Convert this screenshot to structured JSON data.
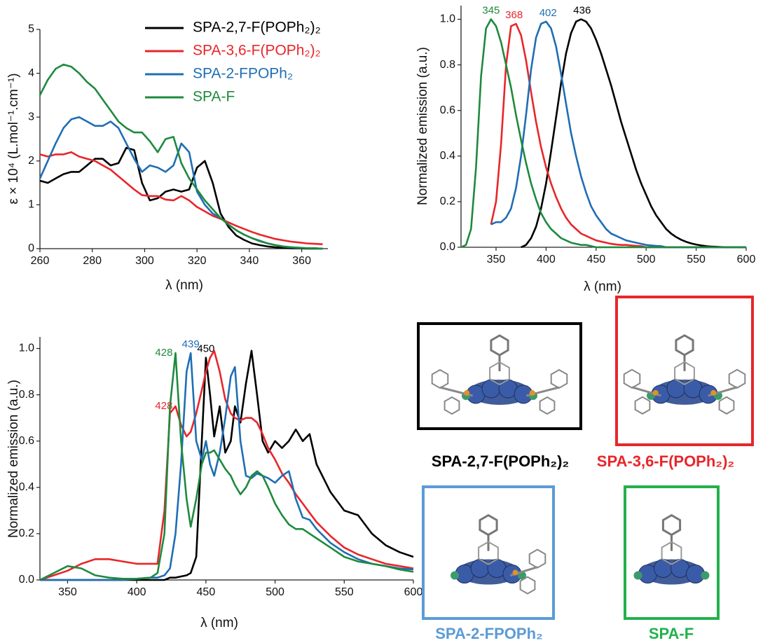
{
  "chart_data": [
    {
      "type": "line",
      "x_label": "λ (nm)",
      "y_label": "ε × 10⁴ (L.mol⁻¹.cm⁻¹)",
      "xlim": [
        260,
        370
      ],
      "xticks": [
        260,
        280,
        300,
        320,
        340,
        360
      ],
      "ylim": [
        0,
        5
      ],
      "yticks": [
        0,
        1,
        2,
        3,
        4,
        5
      ],
      "legend": "upper right",
      "x": [
        260,
        263,
        266,
        269,
        272,
        275,
        278,
        281,
        284,
        287,
        290,
        293,
        296,
        299,
        302,
        305,
        308,
        311,
        314,
        317,
        320,
        323,
        326,
        329,
        332,
        335,
        338,
        341,
        344,
        347,
        350,
        353,
        356,
        359,
        362,
        365,
        368
      ],
      "series": [
        {
          "name": "SPA-2,7-F(POPh₂)₂",
          "color": "#000000",
          "values": [
            1.55,
            1.5,
            1.6,
            1.7,
            1.75,
            1.75,
            1.9,
            2.05,
            2.05,
            1.9,
            1.95,
            2.3,
            2.25,
            1.5,
            1.1,
            1.15,
            1.3,
            1.35,
            1.3,
            1.35,
            1.85,
            2.0,
            1.5,
            0.8,
            0.5,
            0.3,
            0.2,
            0.12,
            0.08,
            0.05,
            0.03,
            0.02,
            0.01,
            0.01,
            0,
            0,
            0
          ]
        },
        {
          "name": "SPA-3,6-F(POPh₂)₂",
          "color": "#e8262a",
          "values": [
            2.15,
            2.1,
            2.15,
            2.15,
            2.2,
            2.1,
            2.05,
            2.0,
            1.9,
            1.8,
            1.65,
            1.5,
            1.35,
            1.22,
            1.2,
            1.2,
            1.12,
            1.1,
            1.2,
            1.1,
            0.95,
            0.85,
            0.75,
            0.68,
            0.6,
            0.52,
            0.45,
            0.38,
            0.32,
            0.27,
            0.22,
            0.19,
            0.16,
            0.14,
            0.12,
            0.11,
            0.1
          ]
        },
        {
          "name": "SPA-2-FPOPh₂",
          "color": "#1f6eb4",
          "values": [
            1.6,
            2.0,
            2.4,
            2.75,
            2.95,
            3.0,
            2.9,
            2.8,
            2.8,
            2.9,
            2.75,
            2.4,
            2.05,
            1.75,
            1.9,
            1.85,
            1.75,
            1.9,
            2.4,
            2.2,
            1.3,
            1.0,
            0.8,
            0.7,
            0.55,
            0.42,
            0.32,
            0.24,
            0.18,
            0.12,
            0.08,
            0.05,
            0.03,
            0.02,
            0.01,
            0.01,
            0
          ]
        },
        {
          "name": "SPA-F",
          "color": "#1e8a3e",
          "values": [
            3.5,
            3.85,
            4.1,
            4.2,
            4.15,
            4.0,
            3.8,
            3.65,
            3.4,
            3.15,
            2.9,
            2.75,
            2.65,
            2.65,
            2.45,
            2.2,
            2.5,
            2.55,
            1.95,
            1.6,
            1.35,
            1.1,
            0.9,
            0.7,
            0.55,
            0.42,
            0.32,
            0.24,
            0.17,
            0.12,
            0.08,
            0.05,
            0.03,
            0.02,
            0.01,
            0.01,
            0
          ]
        }
      ]
    },
    {
      "type": "line",
      "x_label": "λ (nm)",
      "y_label": "Normalized emission (a.u.)",
      "xlim": [
        315,
        600
      ],
      "xticks": [
        350,
        400,
        450,
        500,
        550,
        600
      ],
      "ylim": [
        0,
        1.06
      ],
      "yticks": [
        {
          "value": 0,
          "label": "0.0"
        },
        0.2,
        0.4,
        0.6,
        0.8,
        {
          "value": 1,
          "label": "1.0"
        }
      ],
      "x": [
        315,
        320,
        325,
        330,
        335,
        340,
        345,
        350,
        355,
        360,
        365,
        370,
        375,
        380,
        385,
        390,
        395,
        400,
        405,
        410,
        415,
        420,
        425,
        430,
        435,
        440,
        445,
        450,
        455,
        460,
        465,
        470,
        475,
        480,
        485,
        490,
        495,
        500,
        505,
        510,
        515,
        520,
        525,
        530,
        535,
        540,
        545,
        550,
        555,
        560,
        565,
        570,
        575,
        580,
        585,
        590,
        595,
        600
      ],
      "series": [
        {
          "color": "#000000",
          "peak": 436,
          "values": [
            null,
            null,
            null,
            null,
            null,
            null,
            null,
            null,
            null,
            null,
            null,
            null,
            0,
            0.01,
            0.04,
            0.09,
            0.17,
            0.28,
            0.42,
            0.57,
            0.72,
            0.85,
            0.94,
            0.99,
            1.0,
            0.99,
            0.96,
            0.91,
            0.85,
            0.78,
            0.71,
            0.63,
            0.55,
            0.48,
            0.41,
            0.34,
            0.28,
            0.23,
            0.18,
            0.14,
            0.11,
            0.08,
            0.06,
            0.045,
            0.033,
            0.024,
            0.017,
            0.012,
            0.008,
            0.005,
            0.003,
            0.002,
            0.001,
            0,
            0,
            0,
            0,
            0
          ]
        },
        {
          "color": "#e8262a",
          "peak": 368,
          "values": [
            null,
            null,
            null,
            null,
            null,
            null,
            0.1,
            0.2,
            0.45,
            0.8,
            0.97,
            0.98,
            0.93,
            0.82,
            0.68,
            0.55,
            0.44,
            0.35,
            0.28,
            0.22,
            0.17,
            0.13,
            0.1,
            0.08,
            0.06,
            0.05,
            0.04,
            0.03,
            0.025,
            0.02,
            0.015,
            0.012,
            0.01,
            0.01,
            0.008,
            0.006,
            0.005,
            0,
            0,
            0,
            0,
            0,
            0,
            0,
            0,
            0,
            0,
            0,
            0,
            0,
            0,
            0,
            0,
            0,
            0,
            0,
            0,
            0
          ]
        },
        {
          "color": "#1f6eb4",
          "peak": 402,
          "values": [
            null,
            null,
            null,
            null,
            null,
            null,
            0.1,
            0.11,
            0.11,
            0.13,
            0.17,
            0.26,
            0.4,
            0.58,
            0.78,
            0.92,
            0.98,
            0.99,
            0.96,
            0.88,
            0.76,
            0.63,
            0.5,
            0.4,
            0.31,
            0.24,
            0.18,
            0.14,
            0.11,
            0.08,
            0.06,
            0.05,
            0.04,
            0.03,
            0.025,
            0.02,
            0.015,
            0.01,
            0.008,
            0.006,
            0.005,
            0,
            0,
            0,
            0,
            0,
            0,
            0,
            0,
            0,
            0,
            0,
            0,
            0,
            0,
            0,
            0,
            0
          ]
        },
        {
          "color": "#1e8a3e",
          "peak": 345,
          "values": [
            0,
            0.01,
            0.08,
            0.35,
            0.75,
            0.96,
            1.0,
            0.97,
            0.9,
            0.8,
            0.7,
            0.58,
            0.47,
            0.37,
            0.28,
            0.21,
            0.15,
            0.11,
            0.08,
            0.06,
            0.04,
            0.03,
            0.02,
            0.015,
            0.01,
            0.01,
            0.005,
            0,
            0,
            0,
            0,
            0,
            0,
            0,
            0,
            0,
            0,
            0,
            0,
            0,
            0,
            0,
            0,
            0,
            0,
            0,
            0,
            0,
            0,
            0,
            0,
            0,
            0,
            0,
            0,
            0,
            0,
            0
          ]
        }
      ]
    },
    {
      "type": "line",
      "x_label": "λ (nm)",
      "y_label": "Normalized emission (a.u.)",
      "xlim": [
        330,
        600
      ],
      "xticks": [
        350,
        400,
        450,
        500,
        550,
        600
      ],
      "ylim": [
        0,
        1.05
      ],
      "yticks": [
        {
          "value": 0,
          "label": "0.0"
        },
        0.2,
        0.4,
        0.6,
        0.8,
        {
          "value": 1,
          "label": "1.0"
        }
      ],
      "x": [
        330,
        340,
        350,
        360,
        370,
        380,
        390,
        400,
        410,
        415,
        420,
        424,
        428,
        432,
        436,
        439,
        443,
        447,
        450,
        453,
        456,
        460,
        464,
        468,
        471,
        475,
        479,
        483,
        487,
        491,
        495,
        500,
        505,
        510,
        515,
        520,
        525,
        530,
        540,
        550,
        560,
        570,
        580,
        590,
        600
      ],
      "series": [
        {
          "color": "#000000",
          "peak": 450,
          "values": [
            0,
            0,
            0,
            0,
            0,
            0,
            0,
            0,
            0,
            0,
            0,
            0.01,
            0.01,
            0.015,
            0.02,
            0.03,
            0.1,
            0.6,
            0.96,
            0.8,
            0.62,
            0.75,
            0.55,
            0.6,
            0.75,
            0.68,
            0.85,
            0.99,
            0.8,
            0.6,
            0.55,
            0.6,
            0.57,
            0.6,
            0.65,
            0.6,
            0.63,
            0.5,
            0.38,
            0.3,
            0.28,
            0.2,
            0.15,
            0.12,
            0.1
          ]
        },
        {
          "color": "#e8262a",
          "peak": 428,
          "values": [
            0,
            0.02,
            0.04,
            0.07,
            0.09,
            0.09,
            0.08,
            0.07,
            0.07,
            0.07,
            0.3,
            0.72,
            0.75,
            0.67,
            0.62,
            0.64,
            0.72,
            0.82,
            0.9,
            0.96,
            0.99,
            0.9,
            0.78,
            0.72,
            0.7,
            0.69,
            0.7,
            0.7,
            0.68,
            0.63,
            0.57,
            0.52,
            0.46,
            0.42,
            0.37,
            0.33,
            0.29,
            0.25,
            0.19,
            0.14,
            0.11,
            0.09,
            0.07,
            0.06,
            0.05
          ]
        },
        {
          "color": "#1f6eb4",
          "peak": 439,
          "values": [
            0,
            0,
            0,
            0,
            0,
            0,
            0,
            0.005,
            0.01,
            0.01,
            0.02,
            0.05,
            0.2,
            0.5,
            0.9,
            0.98,
            0.6,
            0.52,
            0.6,
            0.5,
            0.45,
            0.55,
            0.7,
            0.88,
            0.92,
            0.6,
            0.45,
            0.44,
            0.46,
            0.45,
            0.44,
            0.42,
            0.45,
            0.47,
            0.35,
            0.27,
            0.26,
            0.22,
            0.16,
            0.12,
            0.09,
            0.07,
            0.06,
            0.05,
            0.045
          ]
        },
        {
          "color": "#1e8a3e",
          "peak": 428,
          "values": [
            0,
            0.03,
            0.06,
            0.05,
            0.02,
            0.01,
            0.005,
            0.005,
            0.01,
            0.03,
            0.2,
            0.75,
            0.98,
            0.6,
            0.35,
            0.23,
            0.35,
            0.5,
            0.55,
            0.55,
            0.56,
            0.52,
            0.48,
            0.45,
            0.41,
            0.37,
            0.4,
            0.45,
            0.47,
            0.45,
            0.4,
            0.33,
            0.28,
            0.24,
            0.22,
            0.22,
            0.2,
            0.18,
            0.14,
            0.1,
            0.08,
            0.07,
            0.06,
            0.045,
            0.035
          ]
        }
      ]
    }
  ],
  "structures": [
    {
      "label": "SPA-2,7-F(POPh₂)₂",
      "color": "#000000"
    },
    {
      "label": "SPA-3,6-F(POPh₂)₂",
      "color": "#e8262a"
    },
    {
      "label": "SPA-2-FPOPh₂",
      "color": "#5b9bd5"
    },
    {
      "label": "SPA-F",
      "color": "#22b14c"
    }
  ]
}
